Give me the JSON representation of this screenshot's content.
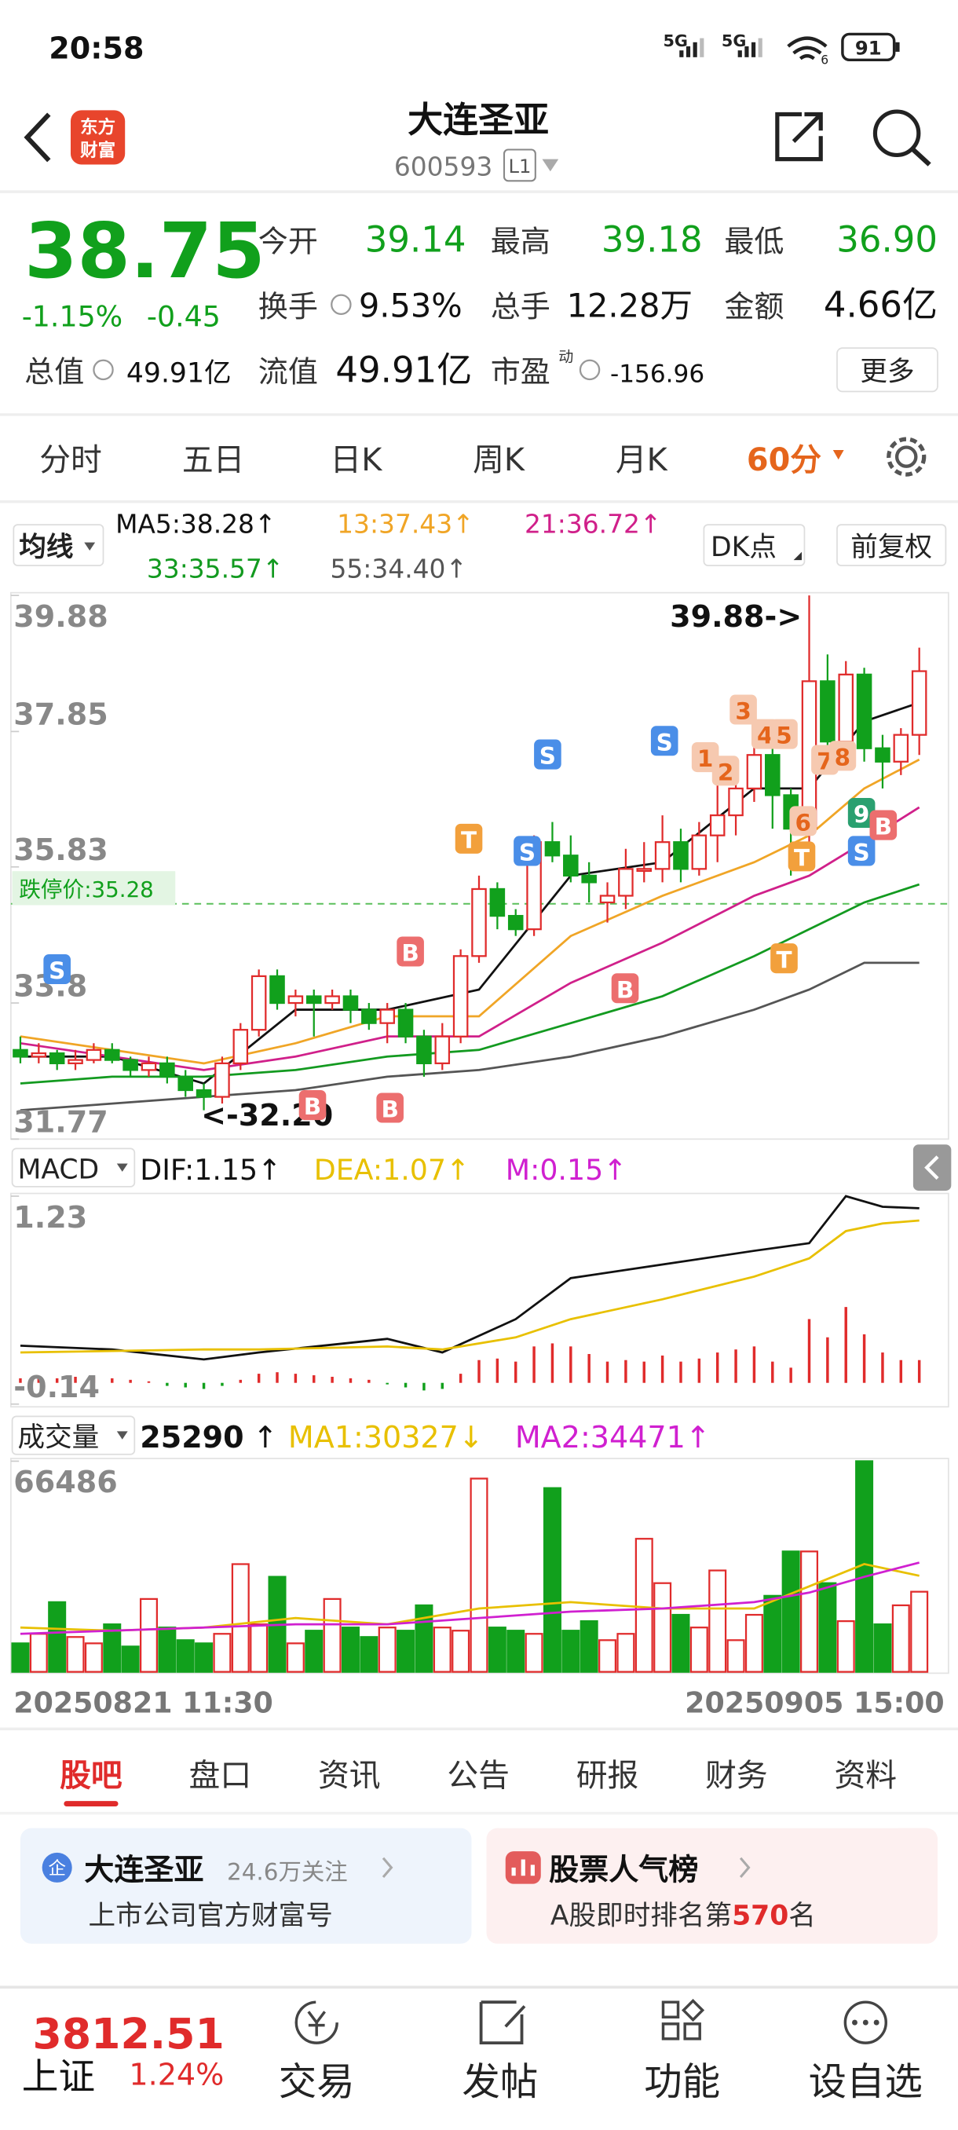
{
  "status_bar": {
    "time": "20:58",
    "network": [
      "5G",
      "5G"
    ],
    "wifi_sub": "6",
    "battery": "91"
  },
  "header": {
    "logo": [
      "东方",
      "财富"
    ],
    "name": "大连圣亚",
    "code": "600593",
    "level": "L1"
  },
  "quote": {
    "price": "38.75",
    "change_pct": "-1.15%",
    "change": "-0.45",
    "fields": [
      {
        "label": "今开",
        "value": "39.14"
      },
      {
        "label": "最高",
        "value": "39.18"
      },
      {
        "label": "最低",
        "value": "36.90"
      },
      {
        "label": "换手",
        "value": "9.53%"
      },
      {
        "label": "总手",
        "value": "12.28万"
      },
      {
        "label": "金额",
        "value": "4.66亿"
      },
      {
        "label": "总值",
        "value": "49.91亿"
      },
      {
        "label": "流值",
        "value": "49.91亿"
      },
      {
        "label": "市盈",
        "sup": "动",
        "value": "-156.96"
      }
    ],
    "more": "更多"
  },
  "period_tabs": {
    "items": [
      "分时",
      "五日",
      "日K",
      "周K",
      "月K",
      "60分"
    ],
    "active": 5
  },
  "ma_bar": {
    "selector": "均线",
    "dk": "DK点",
    "adjust": "前复权"
  },
  "chart_data": [
    {
      "type": "candlestick",
      "ylim": [
        31.77,
        39.88
      ],
      "yticks": [
        39.88,
        37.85,
        35.83,
        33.8,
        31.77
      ],
      "open": [
        33.1,
        33.0,
        33.05,
        32.9,
        32.95,
        33.1,
        32.95,
        32.8,
        32.9,
        32.7,
        32.5,
        32.4,
        32.9,
        33.4,
        34.2,
        33.8,
        33.9,
        33.8,
        33.9,
        33.7,
        33.5,
        33.7,
        33.3,
        32.9,
        33.3,
        34.5,
        35.5,
        35.1,
        34.9,
        36.2,
        36.0,
        35.7,
        35.3,
        35.4,
        35.8,
        35.8,
        36.2,
        35.8,
        36.3,
        36.6,
        37.0,
        37.5,
        36.9,
        36.4,
        38.6,
        37.7,
        38.7,
        37.6,
        37.4,
        37.8
      ],
      "close": [
        33.0,
        33.05,
        32.9,
        32.95,
        33.1,
        32.95,
        32.8,
        32.9,
        32.7,
        32.5,
        32.4,
        32.9,
        33.4,
        34.2,
        33.8,
        33.9,
        33.8,
        33.9,
        33.7,
        33.5,
        33.7,
        33.3,
        32.9,
        33.3,
        34.5,
        35.5,
        35.1,
        34.9,
        36.2,
        36.0,
        35.7,
        35.6,
        35.4,
        35.8,
        35.8,
        36.2,
        35.8,
        36.3,
        36.6,
        37.0,
        37.5,
        36.9,
        36.4,
        38.6,
        37.7,
        38.7,
        37.6,
        37.4,
        37.8,
        38.75
      ],
      "high": [
        33.3,
        33.2,
        33.1,
        33.1,
        33.2,
        33.2,
        33.0,
        33.0,
        33.0,
        32.8,
        32.6,
        33.0,
        33.5,
        34.3,
        34.3,
        34.0,
        34.0,
        34.0,
        34.0,
        33.8,
        33.8,
        33.8,
        33.4,
        33.5,
        34.6,
        35.7,
        35.6,
        35.2,
        36.3,
        36.5,
        36.3,
        35.9,
        35.6,
        36.1,
        36.2,
        36.6,
        36.4,
        36.5,
        37.4,
        37.4,
        37.7,
        37.6,
        37.0,
        39.88,
        39.0,
        38.9,
        38.8,
        37.8,
        37.9,
        39.1
      ],
      "low": [
        32.9,
        32.9,
        32.8,
        32.8,
        32.9,
        32.9,
        32.7,
        32.7,
        32.6,
        32.4,
        32.2,
        32.3,
        32.8,
        33.3,
        33.7,
        33.6,
        33.3,
        33.7,
        33.5,
        33.4,
        33.2,
        33.2,
        32.7,
        32.8,
        33.2,
        34.4,
        34.9,
        34.8,
        34.8,
        35.9,
        35.6,
        35.3,
        35.0,
        35.2,
        35.6,
        35.6,
        35.6,
        35.7,
        35.9,
        36.3,
        36.8,
        36.4,
        35.7,
        36.0,
        37.5,
        37.4,
        37.4,
        37.0,
        37.2,
        37.5
      ],
      "series": [
        {
          "name": "MA5:38.28↑",
          "color": "#111111",
          "x": [
            0,
            5,
            10,
            15,
            20,
            25,
            30,
            35,
            40,
            43,
            46,
            49
          ],
          "values": [
            33.0,
            33.0,
            32.6,
            33.7,
            33.7,
            34.0,
            35.7,
            35.9,
            37.0,
            37.0,
            38.0,
            38.28
          ]
        },
        {
          "name": "13:37.43↑",
          "color": "#f0a526",
          "x": [
            0,
            5,
            10,
            15,
            20,
            25,
            30,
            35,
            40,
            43,
            46,
            49
          ],
          "values": [
            33.3,
            33.1,
            32.9,
            33.2,
            33.6,
            33.6,
            34.8,
            35.4,
            35.9,
            36.3,
            37.0,
            37.43
          ]
        },
        {
          "name": "21:36.72↑",
          "color": "#d0208a",
          "x": [
            0,
            5,
            10,
            15,
            20,
            25,
            30,
            35,
            40,
            43,
            46,
            49
          ],
          "values": [
            33.2,
            33.0,
            32.8,
            33.0,
            33.3,
            33.3,
            34.1,
            34.7,
            35.4,
            35.7,
            36.2,
            36.72
          ]
        },
        {
          "name": "33:35.57↑",
          "color": "#139a20",
          "x": [
            0,
            5,
            10,
            15,
            20,
            25,
            30,
            35,
            40,
            43,
            46,
            49
          ],
          "values": [
            32.6,
            32.7,
            32.7,
            32.8,
            33.0,
            33.1,
            33.5,
            33.9,
            34.5,
            34.9,
            35.3,
            35.57
          ]
        },
        {
          "name": "55:34.40↑",
          "color": "#555555",
          "x": [
            0,
            5,
            10,
            15,
            20,
            25,
            30,
            35,
            40,
            43,
            46,
            49
          ],
          "values": [
            32.2,
            32.3,
            32.4,
            32.5,
            32.7,
            32.8,
            33.0,
            33.3,
            33.7,
            34.0,
            34.4,
            34.4
          ]
        }
      ],
      "limit": {
        "label": "跌停价:35.28",
        "value": 35.28
      },
      "annotations": [
        "39.88->",
        "<-32.20"
      ],
      "signals": [
        "S",
        "B",
        "B",
        "B",
        "T",
        "S",
        "S",
        "S",
        "B",
        "1",
        "2",
        "3",
        "4",
        "5",
        "6",
        "T",
        "T",
        "7",
        "8",
        "9",
        "S",
        "B"
      ]
    },
    {
      "type": "macd",
      "selector": "MACD",
      "ylim": [
        -0.14,
        1.23
      ],
      "yticks": [
        1.23,
        -0.14
      ],
      "series": [
        {
          "name": "DIF:1.15↑",
          "color": "#111111",
          "x": [
            0,
            5,
            10,
            13,
            20,
            23,
            27,
            30,
            35,
            40,
            43,
            45,
            47,
            49
          ],
          "values": [
            0.245,
            0.22,
            0.155,
            0.2,
            0.29,
            0.2,
            0.42,
            0.69,
            0.78,
            0.87,
            0.92,
            1.23,
            1.16,
            1.15
          ]
        },
        {
          "name": "DEA:1.07↑",
          "color": "#e8c000",
          "x": [
            0,
            5,
            10,
            13,
            20,
            23,
            27,
            30,
            35,
            40,
            43,
            45,
            47,
            49
          ],
          "values": [
            0.2,
            0.21,
            0.22,
            0.22,
            0.24,
            0.22,
            0.3,
            0.42,
            0.55,
            0.7,
            0.82,
            1.0,
            1.05,
            1.07
          ]
        }
      ],
      "histogram": {
        "name": "M:0.15↑",
        "color": "#d020d0",
        "values": [
          0.03,
          0.04,
          0.03,
          0.04,
          0.04,
          0.03,
          0.02,
          0.01,
          -0.02,
          -0.03,
          -0.04,
          -0.02,
          0.02,
          0.06,
          0.07,
          0.06,
          0.05,
          0.04,
          0.03,
          0.02,
          -0.01,
          -0.03,
          -0.05,
          -0.04,
          0.06,
          0.15,
          0.16,
          0.14,
          0.24,
          0.26,
          0.24,
          0.19,
          0.14,
          0.15,
          0.14,
          0.18,
          0.14,
          0.16,
          0.2,
          0.22,
          0.24,
          0.14,
          0.1,
          0.42,
          0.3,
          0.5,
          0.32,
          0.2,
          0.15,
          0.15
        ]
      }
    },
    {
      "type": "bar",
      "selector": "成交量",
      "trend": "↑",
      "ylim": [
        0,
        66486
      ],
      "yticks": [
        66486
      ],
      "values": [
        9000,
        12000,
        22000,
        11000,
        9000,
        15000,
        8000,
        23000,
        14000,
        10000,
        9000,
        12000,
        34000,
        15000,
        30000,
        9000,
        13000,
        23000,
        14000,
        11000,
        14000,
        13000,
        21000,
        14000,
        13000,
        61000,
        14000,
        13000,
        12000,
        58000,
        13000,
        16000,
        10000,
        12000,
        42000,
        28000,
        18000,
        14000,
        32000,
        10000,
        18000,
        24000,
        38000,
        38000,
        28000,
        16000,
        66486,
        15000,
        21000,
        25290
      ],
      "series": [
        {
          "name": "MA1:30327↓",
          "color": "#e8c000",
          "x": [
            0,
            5,
            10,
            15,
            20,
            25,
            30,
            35,
            40,
            43,
            46,
            49
          ],
          "values": [
            14000,
            13000,
            14000,
            17000,
            15000,
            20000,
            22000,
            20000,
            20000,
            27000,
            34000,
            30327
          ]
        },
        {
          "name": "MA2:34471↑",
          "color": "#d020d0",
          "x": [
            0,
            5,
            10,
            15,
            20,
            25,
            30,
            35,
            40,
            43,
            46,
            49
          ],
          "values": [
            12000,
            13000,
            14000,
            15000,
            15000,
            17000,
            19000,
            20000,
            22000,
            25000,
            30000,
            34471
          ]
        }
      ],
      "x_labels": [
        "20250821 11:30",
        "20250905 15:00"
      ]
    }
  ],
  "bottom_tabs": {
    "items": [
      "股吧",
      "盘口",
      "资讯",
      "公告",
      "研报",
      "财务",
      "资料"
    ],
    "active": 0
  },
  "cards": [
    {
      "badge": "企",
      "title": "大连圣亚",
      "followers": "24.6万关注",
      "subtitle": "上市公司官方财富号"
    },
    {
      "title": "股票人气榜",
      "subtitle_pre": "A股即时排名第",
      "rank": "570",
      "subtitle_post": "名"
    }
  ],
  "footer": {
    "index_value": "3812.51",
    "index_name": "上证",
    "index_change": "1.24%",
    "items": [
      "交易",
      "发帖",
      "功能",
      "设自选"
    ]
  }
}
